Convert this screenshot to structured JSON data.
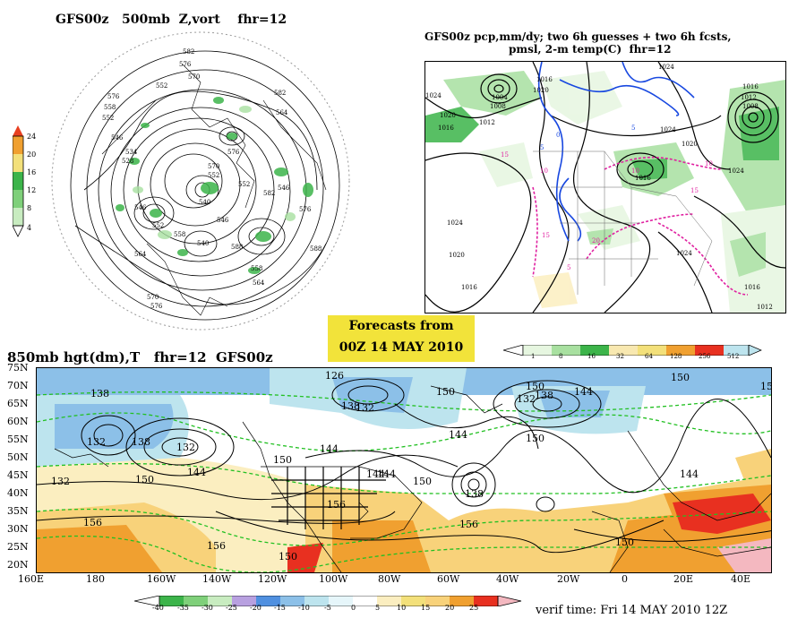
{
  "panels": {
    "polar": {
      "title": "GFS00z   500mb  Z,vort    fhr=12",
      "colorbar": [
        "24",
        "20",
        "16",
        "12",
        "8",
        "4"
      ],
      "contours": [
        "582",
        "576",
        "570",
        "552",
        "576",
        "558",
        "552",
        "546",
        "534",
        "528",
        "546",
        "540",
        "546",
        "552",
        "558",
        "564",
        "570",
        "576",
        "558",
        "564",
        "582",
        "564",
        "588",
        "576",
        "570",
        "552",
        "540",
        "582",
        "576",
        "546",
        "552",
        "588"
      ]
    },
    "pcp": {
      "title_line1": "GFS00z pcp,mm/dy; two 6h guesses + two 6h fcsts,",
      "title_line2": "pmsl, 2-m temp(C)  fhr=12",
      "colorbar": [
        "1",
        "8",
        "16",
        "32",
        "64",
        "128",
        "256",
        "512"
      ],
      "pressure_labels": [
        "1024",
        "1020",
        "1016",
        "1012",
        "1008",
        "1004",
        "1020",
        "1016",
        "1024",
        "1020",
        "1016",
        "1024",
        "1016",
        "1012",
        "1008",
        "1024",
        "1020",
        "1016",
        "1024",
        "1016",
        "1024",
        "1012"
      ],
      "temp_labels": [
        "15",
        "10",
        "5",
        "0",
        "5",
        "10",
        "15",
        "20",
        "15",
        "10",
        "5"
      ]
    },
    "forecast_box": {
      "line1": "Forecasts from",
      "line2": "00Z 14 MAY 2010"
    },
    "hgt850": {
      "title": "850mb hgt(dm),T   fhr=12  GFS00z",
      "lat_labels": [
        "75N",
        "70N",
        "65N",
        "60N",
        "55N",
        "50N",
        "45N",
        "40N",
        "35N",
        "30N",
        "25N",
        "20N"
      ],
      "lon_labels": [
        "160E",
        "180",
        "160W",
        "140W",
        "120W",
        "100W",
        "80W",
        "60W",
        "40W",
        "20W",
        "0",
        "20E",
        "40E"
      ],
      "contour_labels": [
        "138",
        "132",
        "138",
        "132",
        "144",
        "150",
        "132",
        "156",
        "156",
        "150",
        "144",
        "138",
        "132",
        "144",
        "150",
        "132",
        "144",
        "138",
        "150",
        "144",
        "150",
        "138",
        "150",
        "144",
        "150",
        "150",
        "156",
        "150",
        "156",
        "144",
        "150",
        "126"
      ],
      "colorbar": [
        "-40",
        "-35",
        "-30",
        "-25",
        "-20",
        "-15",
        "-10",
        "-5",
        "0",
        "5",
        "10",
        "15",
        "20",
        "25"
      ],
      "verif_time": "verif time: Fri 14 MAY 2010 12Z"
    }
  },
  "colors": {
    "vort_green": "#3cb44a",
    "vort_light": "#a8e0a0",
    "orange": "#f0a030",
    "yellow": "#f3e07a",
    "tan": "#f8e8b0",
    "light_blue": "#bde4ee",
    "blue": "#8cc0e8",
    "red": "#e83020",
    "pink": "#f4b8c0",
    "contour_dash": "#22c022",
    "isobar_blue": "#1848e0",
    "magenta": "#e020a0"
  }
}
